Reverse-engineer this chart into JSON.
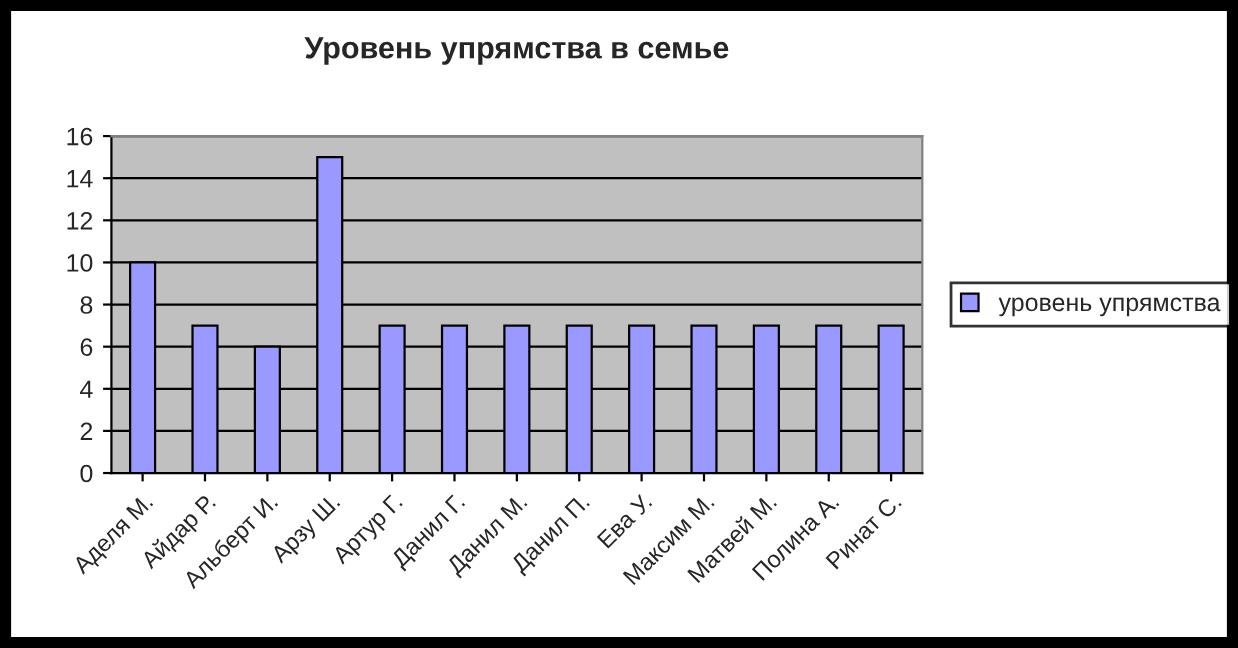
{
  "chart_data": {
    "type": "bar",
    "title": "Уровень упрямства в семье",
    "categories": [
      "Аделя М.",
      "Айдар Р.",
      "Альберт И.",
      "Арзу Ш.",
      "Артур Г.",
      "Данил Г.",
      "Данил М.",
      "Данил П.",
      "Ева У.",
      "Максим М.",
      "Матвей М.",
      "Полина А.",
      "Ринат С."
    ],
    "series": [
      {
        "name": "уровень упрямства",
        "color": "#9999ff",
        "values": [
          10,
          7,
          6,
          15,
          7,
          7,
          7,
          7,
          7,
          7,
          7,
          7,
          7
        ]
      }
    ],
    "ylim": [
      0,
      16
    ],
    "yticks": [
      0,
      2,
      4,
      6,
      8,
      10,
      12,
      14,
      16
    ],
    "grid": "y",
    "legend": "right"
  }
}
